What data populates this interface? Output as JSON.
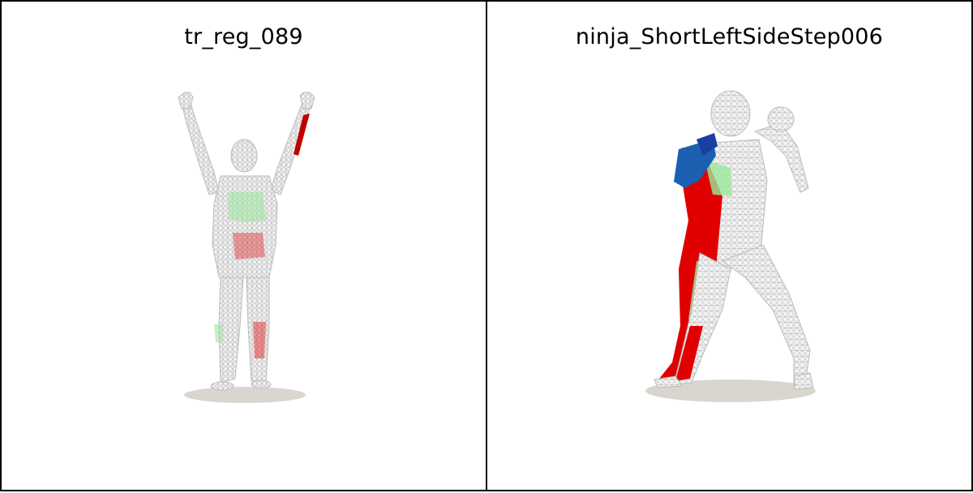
{
  "viewports": [
    {
      "title": "tr_reg_089"
    },
    {
      "title": "ninja_ShortLeftSideStep006"
    }
  ],
  "colors": {
    "background": "#ffffff",
    "border": "#000000",
    "mesh_wire": "#cfcfcf",
    "shadow": "#d9d6cf",
    "error_high": "#e00000",
    "error_mid": "#9be89b",
    "error_low": "#1a5fb0"
  }
}
